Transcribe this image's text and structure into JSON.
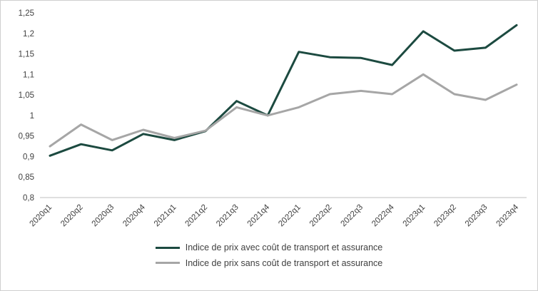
{
  "chart_data": {
    "type": "line",
    "title": "",
    "xlabel": "",
    "ylabel": "",
    "categories": [
      "2020q1",
      "2020q2",
      "2020q3",
      "2020q4",
      "2021q1",
      "2021q2",
      "2021q3",
      "2021q4",
      "2022q1",
      "2022q2",
      "2022q3",
      "2022q4",
      "2023q1",
      "2023q2",
      "2023q3",
      "2023q4"
    ],
    "series": [
      {
        "name": "Indice de prix avec coût de transport et assurance",
        "color": "#1c4a40",
        "values": [
          0.902,
          0.93,
          0.915,
          0.955,
          0.94,
          0.962,
          1.035,
          1.0,
          1.155,
          1.142,
          1.14,
          1.123,
          1.205,
          1.158,
          1.165,
          1.22
        ]
      },
      {
        "name": "Indice de prix sans coût de transport et assurance",
        "color": "#a6a6a6",
        "values": [
          0.925,
          0.978,
          0.94,
          0.965,
          0.945,
          0.963,
          1.02,
          1.0,
          1.02,
          1.052,
          1.06,
          1.052,
          1.1,
          1.052,
          1.038,
          1.075
        ]
      }
    ],
    "ylim": [
      0.8,
      1.25
    ],
    "yticks": [
      0.8,
      0.85,
      0.9,
      0.95,
      1.0,
      1.05,
      1.1,
      1.15,
      1.2,
      1.25
    ],
    "ytick_labels": [
      "0,8",
      "0,85",
      "0,9",
      "0,95",
      "1",
      "1,05",
      "1,1",
      "1,15",
      "1,2",
      "1,25"
    ],
    "grid": false,
    "legend_position": "bottom",
    "axis_color": "#bfbfbf",
    "text_color": "#404040"
  }
}
